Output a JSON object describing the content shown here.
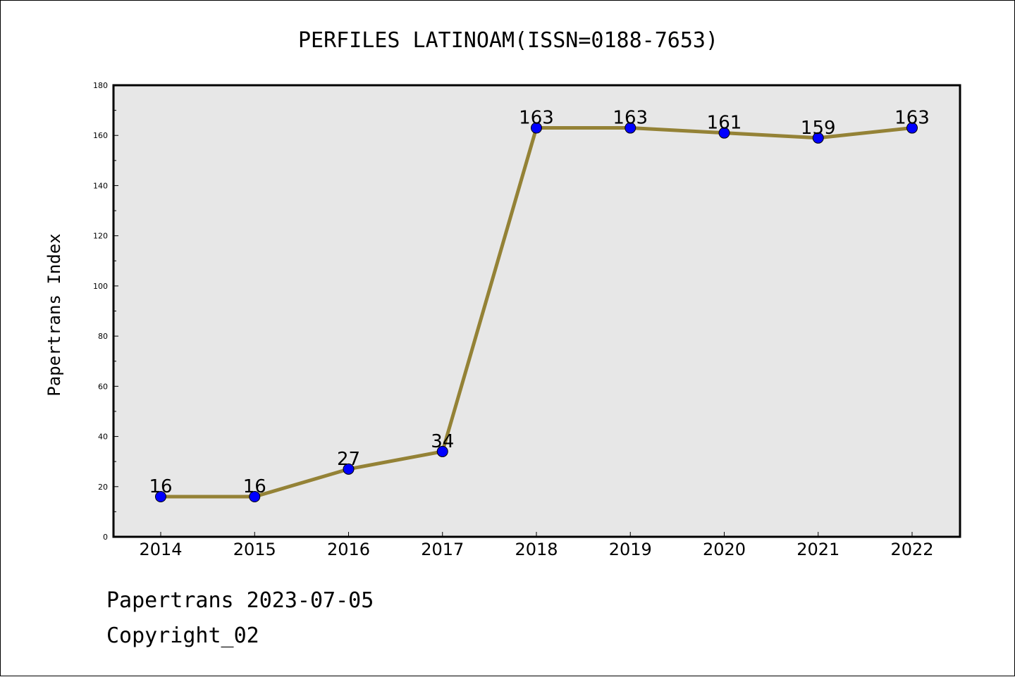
{
  "chart_data": {
    "type": "line",
    "title": "PERFILES LATINOAM(ISSN=0188-7653)",
    "xlabel": "",
    "ylabel": "Papertrans Index",
    "categories": [
      "2014",
      "2015",
      "2016",
      "2017",
      "2018",
      "2019",
      "2020",
      "2021",
      "2022"
    ],
    "values": [
      16,
      16,
      27,
      34,
      163,
      163,
      161,
      159,
      163
    ],
    "data_labels": [
      "16",
      "16",
      "27",
      "34",
      "163",
      "163",
      "161",
      "159",
      "163"
    ],
    "ylim": [
      0,
      180
    ],
    "yticks": [
      "0",
      "20",
      "40",
      "60",
      "80",
      "100",
      "120",
      "140",
      "160",
      "180"
    ],
    "grid": false,
    "legend": "none",
    "colors": {
      "line": "#948236",
      "marker": "#0000ff",
      "plot_background": "#e7e7e7"
    }
  },
  "footer": {
    "line1": "Papertrans 2023-07-05",
    "line2": "Copyright_02"
  }
}
